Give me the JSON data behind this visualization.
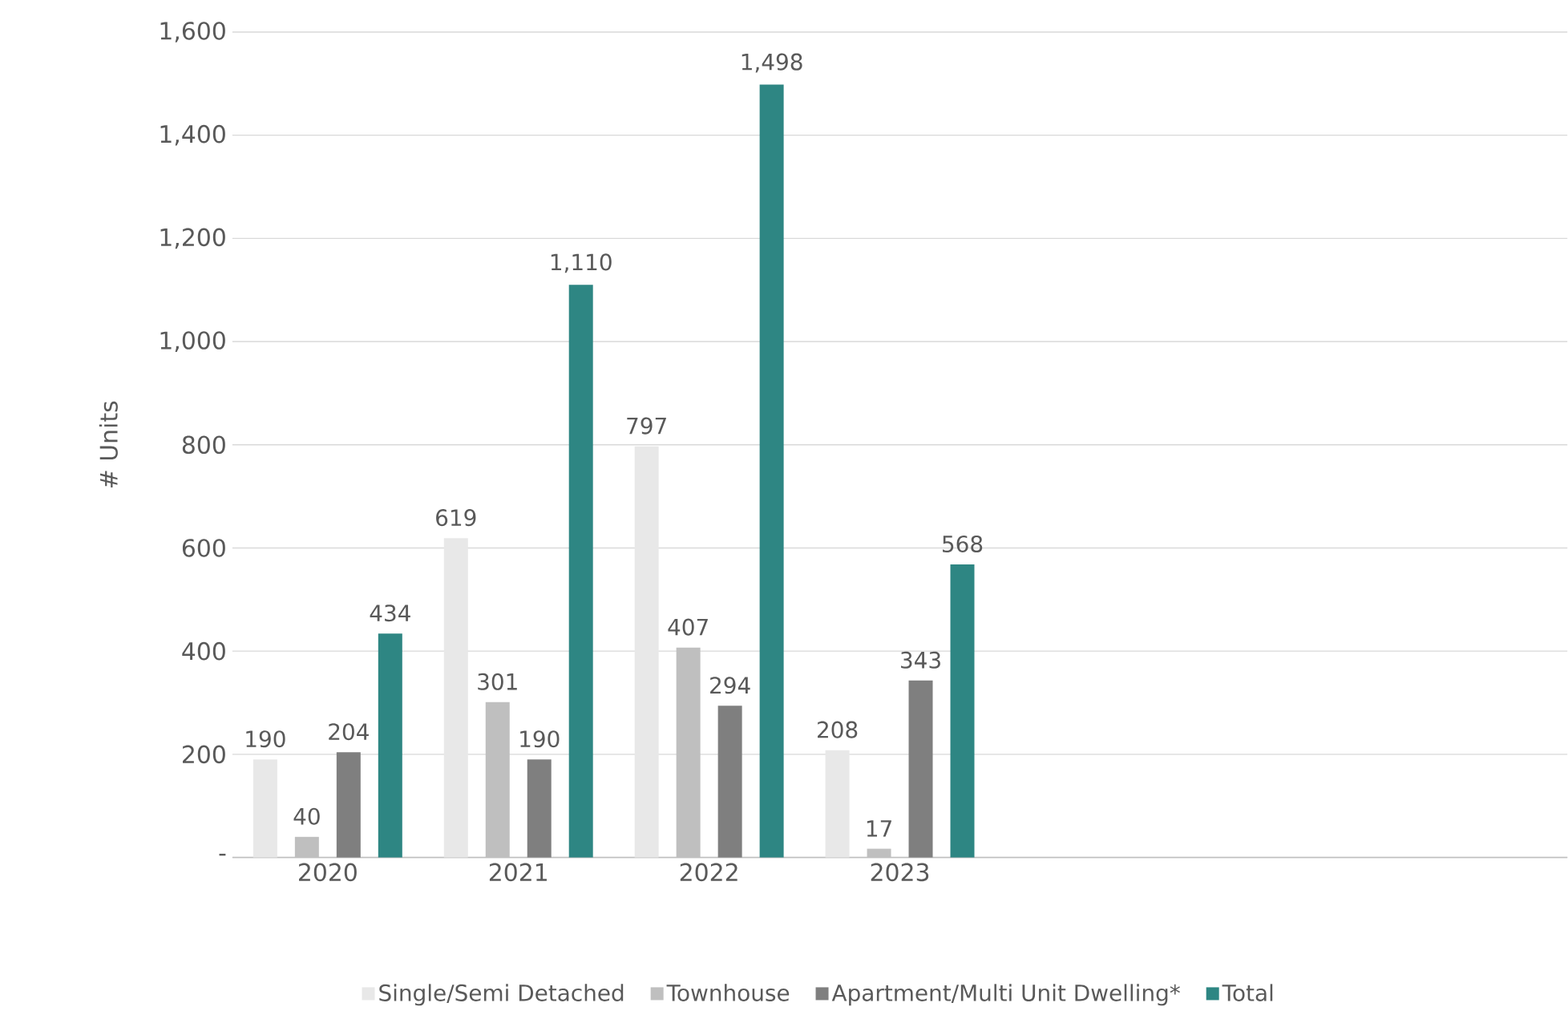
{
  "chart_data": {
    "type": "bar",
    "ylabel": "# Units",
    "categories": [
      "2020",
      "2021",
      "2022",
      "2023",
      null,
      null,
      null
    ],
    "series": [
      {
        "name": "Single/Semi Detached",
        "color": "#e8e8e8",
        "values": [
          190,
          619,
          797,
          208,
          null,
          null,
          null
        ],
        "value_labels": [
          "190",
          "619",
          "797",
          "208",
          null,
          null,
          null
        ]
      },
      {
        "name": "Townhouse",
        "color": "#bfbfbf",
        "values": [
          40,
          301,
          407,
          17,
          null,
          null,
          null
        ],
        "value_labels": [
          "40",
          "301",
          "407",
          "17",
          null,
          null,
          null
        ]
      },
      {
        "name": "Apartment/Multi Unit Dwelling*",
        "color": "#7f7f7f",
        "values": [
          204,
          190,
          294,
          343,
          null,
          null,
          null
        ],
        "value_labels": [
          "204",
          "190",
          "294",
          "343",
          null,
          null,
          null
        ]
      },
      {
        "name": "Total",
        "color": "#2e8683",
        "values": [
          434,
          1110,
          1498,
          568,
          null,
          null,
          null
        ],
        "value_labels": [
          "434",
          "1,110",
          "1,498",
          "568",
          null,
          null,
          null
        ]
      }
    ],
    "ylim": [
      0,
      1600
    ],
    "yticks": [
      {
        "value": 0,
        "label": "-"
      },
      200,
      400,
      600,
      800,
      {
        "value": 1000,
        "label": "1,000"
      },
      {
        "value": 1200,
        "label": "1,200"
      },
      {
        "value": 1400,
        "label": "1,400"
      },
      {
        "value": 1600,
        "label": "1,600"
      }
    ],
    "grid": "y",
    "legend": "bottom"
  }
}
